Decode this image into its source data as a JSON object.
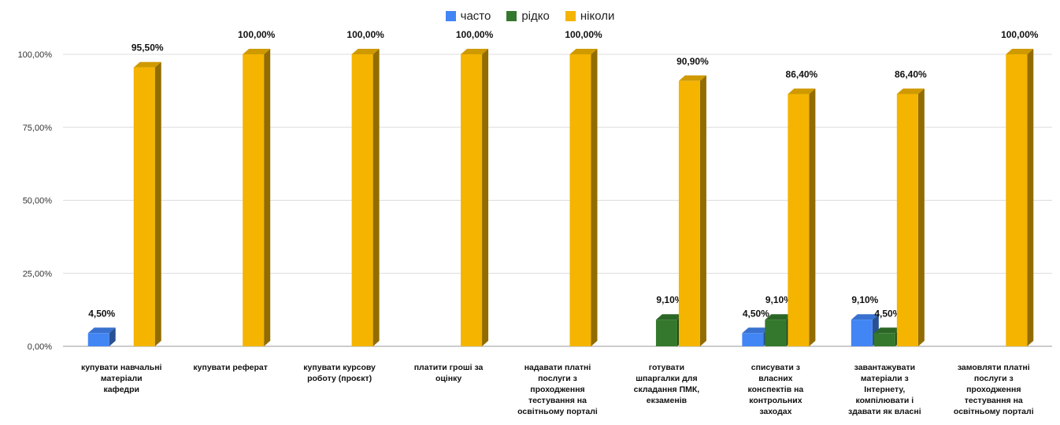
{
  "chart_data": {
    "type": "bar",
    "categories": [
      [
        "купувати навчальні",
        "матеріали",
        "кафедри"
      ],
      [
        "купувати реферат"
      ],
      [
        "купувати курсову",
        "роботу (проєкт)"
      ],
      [
        "платити гроші за",
        "оцінку"
      ],
      [
        "надавати платні",
        "послуги з",
        "проходження",
        "тестування на",
        "освітньому порталі"
      ],
      [
        "готувати",
        "шпаргалки для",
        "складання ПМК,",
        "екзаменів"
      ],
      [
        "списувати з",
        "власних",
        "конспектів на",
        "контрольних",
        "заходах"
      ],
      [
        "завантажувати",
        "матеріали з",
        "Інтернету,",
        "компілювати і",
        "здавати як власні"
      ],
      [
        "замовляти платні",
        "послуги з",
        "проходження",
        "тестування на",
        "освітньому порталі"
      ]
    ],
    "series": [
      {
        "name": "часто",
        "color": "#4285F4",
        "values": [
          4.5,
          0,
          0,
          0,
          0,
          0,
          4.5,
          9.1,
          0
        ],
        "labels": [
          "4,50%",
          "",
          "",
          "",
          "",
          "",
          "4,50%",
          "9,10%",
          ""
        ]
      },
      {
        "name": "рідко",
        "color": "#34782D",
        "values": [
          0,
          0,
          0,
          0,
          0,
          9.1,
          9.1,
          4.5,
          0
        ],
        "labels": [
          "",
          "",
          "",
          "",
          "",
          "9,10%",
          "9,10%",
          "4,50%",
          ""
        ]
      },
      {
        "name": "ніколи",
        "color": "#F4B400",
        "values": [
          95.5,
          100,
          100,
          100,
          100,
          90.9,
          86.4,
          86.4,
          100
        ],
        "labels": [
          "95,50%",
          "100,00%",
          "100,00%",
          "100,00%",
          "100,00%",
          "90,90%",
          "86,40%",
          "86,40%",
          "100,00%"
        ]
      }
    ],
    "yticks": [
      "0,00%",
      "25,00%",
      "50,00%",
      "75,00%",
      "100,00%"
    ],
    "ylim": [
      0,
      100
    ],
    "grid": true,
    "legend": "top-center",
    "style": "3d"
  }
}
